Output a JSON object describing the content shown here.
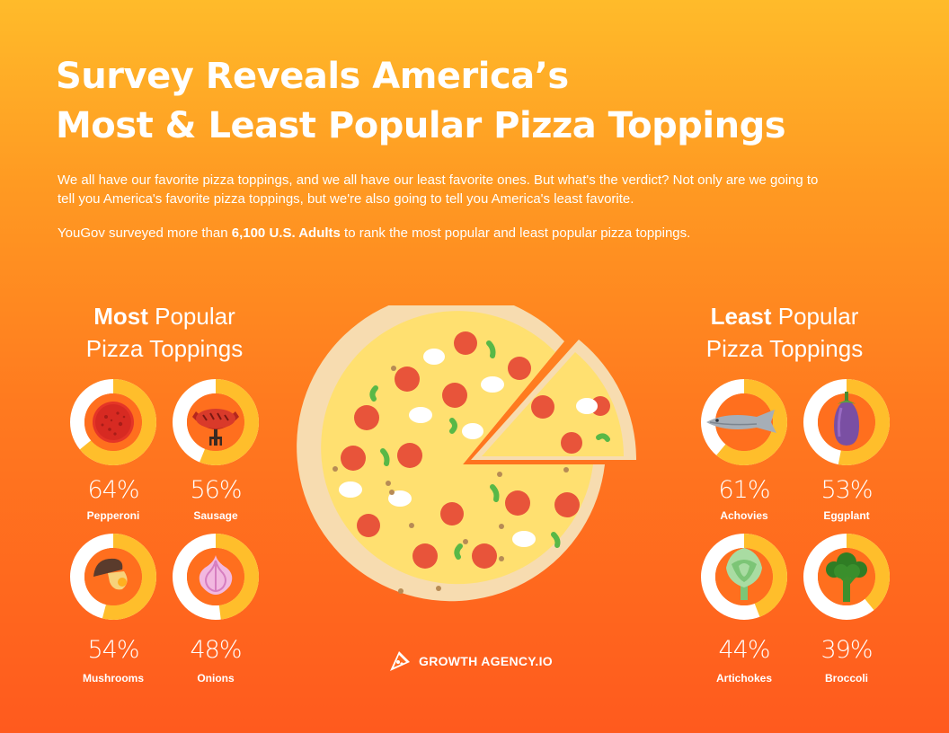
{
  "title": {
    "line1": "Survey Reveals America’s",
    "line2": "Most & Least Popular Pizza Toppings"
  },
  "intro": {
    "paragraph1": "We all have our favorite pizza toppings, and we all have our least favorite ones. But what's the verdict? Not only are we going  to tell you America's favorite pizza toppings, but we're also going to tell you America's least favorite.",
    "p2_before": "YouGov surveyed more than ",
    "p2_bold": "6,100 U.S. Adults",
    "p2_after": " to rank the most popular and least popular pizza toppings."
  },
  "most": {
    "title_bold": "Most",
    "title_rest": " Popular",
    "title_line2": "Pizza Toppings",
    "items": [
      {
        "name": "Pepperoni",
        "percent_label": "64%",
        "value": 64,
        "icon": "pepperoni-icon"
      },
      {
        "name": "Sausage",
        "percent_label": "56%",
        "value": 56,
        "icon": "sausage-icon"
      },
      {
        "name": "Mushrooms",
        "percent_label": "54%",
        "value": 54,
        "icon": "mushroom-icon"
      },
      {
        "name": "Onions",
        "percent_label": "48%",
        "value": 48,
        "icon": "onion-icon"
      }
    ]
  },
  "least": {
    "title_bold": "Least",
    "title_rest": " Popular",
    "title_line2": "Pizza Toppings",
    "items": [
      {
        "name": "Achovies",
        "percent_label": "61%",
        "value": 61,
        "icon": "fish-icon"
      },
      {
        "name": "Eggplant",
        "percent_label": "53%",
        "value": 53,
        "icon": "eggplant-icon"
      },
      {
        "name": "Artichokes",
        "percent_label": "44%",
        "value": 44,
        "icon": "artichoke-icon"
      },
      {
        "name": "Broccoli",
        "percent_label": "39%",
        "value": 39,
        "icon": "broccoli-icon"
      }
    ]
  },
  "brand": {
    "name": "GROWTH AGENCY.IO",
    "icon": "pizza-slice-logo-icon"
  },
  "colors": {
    "ring_fill": "#ffbe2b",
    "ring_track": "#ffffff",
    "ring_center": "#ff6f1e",
    "crust": "#f7dcb0",
    "cheese": "#ffe070",
    "pepperoni": "#e8543a",
    "pepper": "#58b847"
  }
}
